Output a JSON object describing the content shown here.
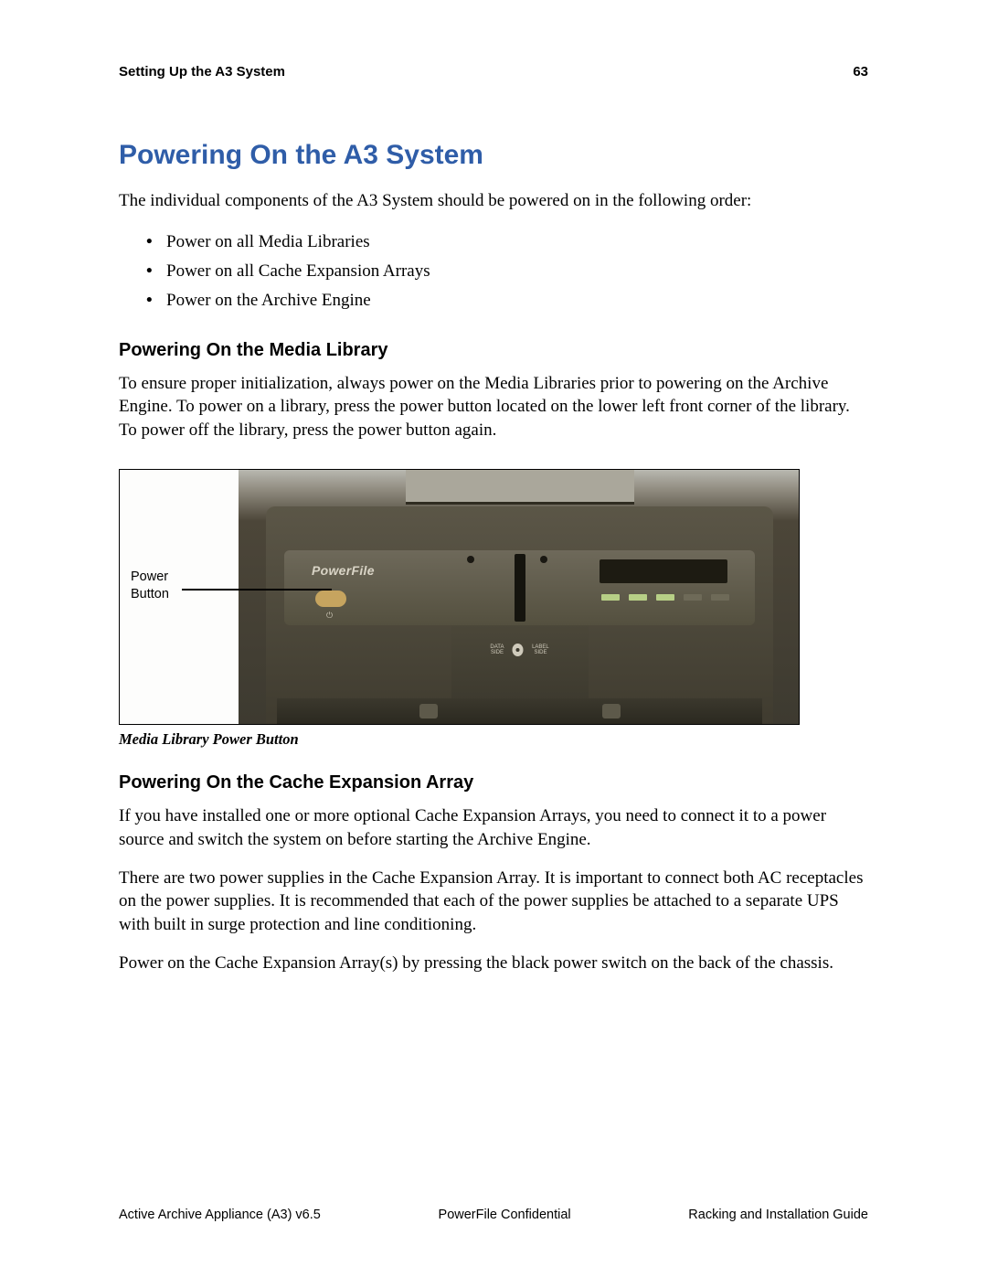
{
  "header": {
    "section": "Setting Up the A3 System",
    "page": "63"
  },
  "title": "Powering On the A3 System",
  "intro": "The individual components of the A3 System should be powered on in the following order:",
  "bullets": [
    "Power on all Media Libraries",
    "Power on all Cache Expansion Arrays",
    "Power on the Archive Engine"
  ],
  "section1": {
    "heading": "Powering On the Media Library",
    "para": "To ensure proper initialization, always power on the Media Libraries prior to powering on the Archive Engine. To power on a library, press the power button located on the lower left front corner of the library. To power off the library, press the power button again."
  },
  "figure": {
    "label_line1": "Power",
    "label_line2": "Button",
    "brand": "PowerFile",
    "disc_left": "DATA\nSIDE",
    "disc_right": "LABEL\nSIDE",
    "caption": "Media Library Power Button"
  },
  "section2": {
    "heading": "Powering On the Cache Expansion Array",
    "p1": "If you have installed one or more optional Cache Expansion Arrays, you need to connect it to a power source and switch the system on before starting the Archive Engine.",
    "p2": "There are two power supplies in the Cache Expansion Array. It is important to connect both AC receptacles on the power supplies. It is recommended that each of the power supplies be attached to a separate UPS with built in surge protection and line conditioning.",
    "p3": "Power on the Cache Expansion Array(s) by pressing the black power switch on the back of the chassis."
  },
  "footer": {
    "left": "Active Archive Appliance (A3) v6.5",
    "center": "PowerFile Confidential",
    "right": "Racking and Installation Guide"
  },
  "colors": {
    "title": "#2f5da8",
    "text": "#000000"
  }
}
